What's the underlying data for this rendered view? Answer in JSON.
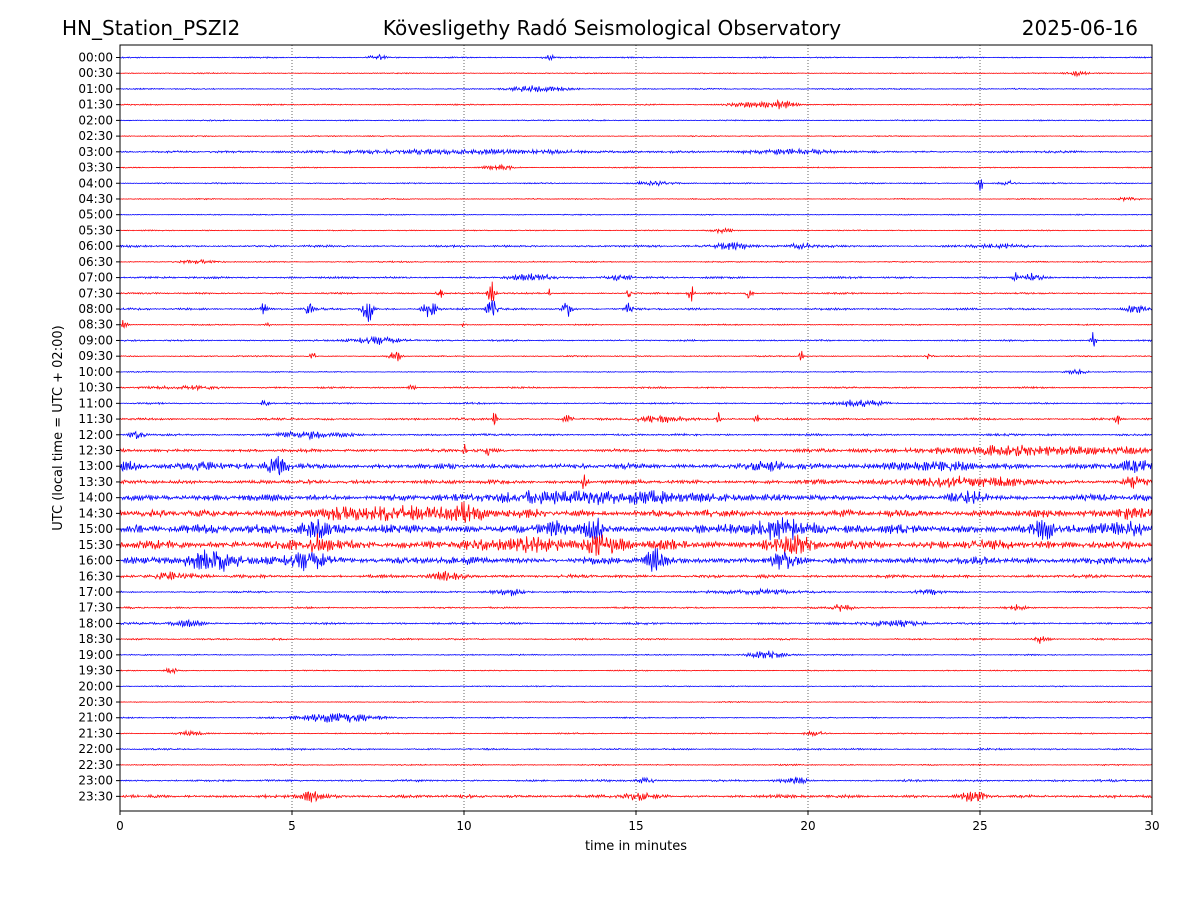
{
  "header": {
    "station": "HN_Station_PSZI2",
    "observatory": "Kövesligethy Radó Seismological Observatory",
    "date": "2025-06-16"
  },
  "chart_data": {
    "type": "line",
    "title": "Kövesligethy Radó Seismological Observatory",
    "xlabel": "time in minutes",
    "ylabel": "UTC (local time = UTC + 02:00)",
    "xlim": [
      0,
      30
    ],
    "x_ticks": [
      0,
      5,
      10,
      15,
      20,
      25,
      30
    ],
    "x_tick_labels": [
      "0",
      "5",
      "10",
      "15",
      "20",
      "25",
      "30"
    ],
    "grid": "vertical dotted at x ticks",
    "colors": {
      "even_row": "#0000ff",
      "odd_row": "#ff0000",
      "grid": "#000000"
    },
    "rows": [
      {
        "label": "00:00",
        "level": 0.6,
        "events": [
          [
            7.5,
            0.25,
            2.5
          ],
          [
            12.5,
            0.2,
            2
          ]
        ]
      },
      {
        "label": "00:30",
        "level": 0.5,
        "events": [
          [
            27.8,
            0.3,
            2
          ]
        ]
      },
      {
        "label": "01:00",
        "level": 0.6,
        "events": [
          [
            12.2,
            0.8,
            2.5
          ]
        ]
      },
      {
        "label": "01:30",
        "level": 0.6,
        "events": [
          [
            18.2,
            0.6,
            2
          ],
          [
            19.2,
            0.4,
            3
          ]
        ]
      },
      {
        "label": "02:00",
        "level": 0.6,
        "events": []
      },
      {
        "label": "02:30",
        "level": 0.5,
        "events": []
      },
      {
        "label": "03:00",
        "level": 1.0,
        "events": [
          [
            10.0,
            4.0,
            1.5
          ],
          [
            19.5,
            1.2,
            2
          ]
        ]
      },
      {
        "label": "03:30",
        "level": 0.5,
        "events": [
          [
            11.0,
            0.4,
            2.5
          ]
        ]
      },
      {
        "label": "04:00",
        "level": 0.6,
        "events": [
          [
            15.5,
            0.5,
            2
          ],
          [
            25.0,
            0.08,
            8
          ],
          [
            25.8,
            0.25,
            2
          ]
        ]
      },
      {
        "label": "04:30",
        "level": 0.5,
        "events": [
          [
            29.3,
            0.3,
            2
          ]
        ]
      },
      {
        "label": "05:00",
        "level": 0.5,
        "events": []
      },
      {
        "label": "05:30",
        "level": 0.5,
        "events": [
          [
            17.5,
            0.3,
            2
          ]
        ]
      },
      {
        "label": "06:00",
        "level": 1.0,
        "events": [
          [
            17.8,
            0.5,
            3
          ],
          [
            19.8,
            0.3,
            2.5
          ],
          [
            25.5,
            0.6,
            1.5
          ]
        ]
      },
      {
        "label": "06:30",
        "level": 0.6,
        "events": [
          [
            2.2,
            0.5,
            1.5
          ]
        ]
      },
      {
        "label": "07:00",
        "level": 1.0,
        "events": [
          [
            12.0,
            0.6,
            3
          ],
          [
            14.5,
            0.4,
            2.5
          ],
          [
            26.0,
            0.06,
            6
          ],
          [
            26.5,
            0.3,
            3
          ]
        ]
      },
      {
        "label": "07:30",
        "level": 0.8,
        "events": [
          [
            9.3,
            0.08,
            6
          ],
          [
            10.8,
            0.1,
            10
          ],
          [
            14.8,
            0.06,
            7
          ],
          [
            16.6,
            0.08,
            8
          ],
          [
            18.3,
            0.08,
            6
          ],
          [
            12.5,
            0.05,
            4
          ]
        ]
      },
      {
        "label": "08:00",
        "level": 1.0,
        "events": [
          [
            4.2,
            0.08,
            7
          ],
          [
            5.5,
            0.1,
            6
          ],
          [
            7.2,
            0.15,
            12
          ],
          [
            9.0,
            0.2,
            7
          ],
          [
            10.8,
            0.15,
            8
          ],
          [
            13.0,
            0.15,
            7
          ],
          [
            14.8,
            0.1,
            6
          ],
          [
            29.5,
            0.3,
            3
          ]
        ]
      },
      {
        "label": "08:30",
        "level": 0.6,
        "events": [
          [
            0.1,
            0.1,
            6
          ],
          [
            4.3,
            0.06,
            4
          ],
          [
            10.0,
            0.05,
            4
          ]
        ]
      },
      {
        "label": "09:00",
        "level": 0.8,
        "events": [
          [
            7.5,
            0.8,
            3
          ],
          [
            28.3,
            0.08,
            7
          ]
        ]
      },
      {
        "label": "09:30",
        "level": 0.6,
        "events": [
          [
            5.6,
            0.08,
            4
          ],
          [
            8.0,
            0.15,
            5
          ],
          [
            19.8,
            0.05,
            7
          ],
          [
            23.5,
            0.1,
            3
          ]
        ]
      },
      {
        "label": "10:00",
        "level": 0.5,
        "events": [
          [
            27.8,
            0.3,
            2
          ]
        ]
      },
      {
        "label": "10:30",
        "level": 0.8,
        "events": [
          [
            2.0,
            0.8,
            1.5
          ],
          [
            8.5,
            0.1,
            3
          ]
        ]
      },
      {
        "label": "11:00",
        "level": 0.8,
        "events": [
          [
            4.2,
            0.1,
            5
          ],
          [
            21.5,
            0.8,
            2.5
          ]
        ]
      },
      {
        "label": "11:30",
        "level": 1.0,
        "events": [
          [
            10.9,
            0.06,
            7
          ],
          [
            13.0,
            0.15,
            3
          ],
          [
            15.8,
            0.8,
            2.5
          ],
          [
            17.4,
            0.06,
            7
          ],
          [
            18.5,
            0.06,
            6
          ],
          [
            29.0,
            0.06,
            6
          ]
        ]
      },
      {
        "label": "12:00",
        "level": 1.0,
        "events": [
          [
            0.5,
            0.2,
            4
          ],
          [
            5.5,
            1.0,
            2.5
          ]
        ]
      },
      {
        "label": "12:30",
        "level": 1.5,
        "events": [
          [
            10.0,
            0.06,
            5
          ],
          [
            10.7,
            0.06,
            5
          ],
          [
            26.5,
            3.5,
            3.5
          ]
        ]
      },
      {
        "label": "13:00",
        "level": 2.5,
        "events": [
          [
            0.2,
            0.3,
            3
          ],
          [
            2.3,
            0.8,
            3
          ],
          [
            4.6,
            0.3,
            7
          ],
          [
            19.0,
            1.0,
            2.5
          ],
          [
            23.5,
            1.5,
            2.5
          ],
          [
            29.5,
            0.6,
            3
          ]
        ]
      },
      {
        "label": "13:30",
        "level": 2.0,
        "events": [
          [
            13.5,
            0.1,
            6
          ],
          [
            24.5,
            2.0,
            3.5
          ],
          [
            29.5,
            0.3,
            4
          ]
        ]
      },
      {
        "label": "14:00",
        "level": 3.0,
        "events": [
          [
            12.0,
            1.5,
            3.5
          ],
          [
            15.0,
            2.5,
            4
          ],
          [
            24.7,
            0.5,
            4
          ]
        ]
      },
      {
        "label": "14:30",
        "level": 3.5,
        "events": [
          [
            8.0,
            2.5,
            4
          ],
          [
            10.0,
            0.5,
            5
          ],
          [
            29.5,
            0.6,
            4
          ]
        ]
      },
      {
        "label": "15:00",
        "level": 4.5,
        "events": [
          [
            0.5,
            0.1,
            7
          ],
          [
            5.7,
            0.5,
            6
          ],
          [
            12.7,
            0.3,
            6
          ],
          [
            13.8,
            0.3,
            6
          ],
          [
            19.3,
            1.0,
            7
          ],
          [
            26.9,
            0.3,
            7
          ],
          [
            29.2,
            0.5,
            5
          ]
        ]
      },
      {
        "label": "15:30",
        "level": 4.5,
        "events": [
          [
            5.8,
            0.3,
            7
          ],
          [
            14.0,
            0.5,
            7
          ],
          [
            19.4,
            0.6,
            7
          ],
          [
            12.0,
            1.0,
            5
          ]
        ]
      },
      {
        "label": "16:00",
        "level": 3.5,
        "events": [
          [
            2.7,
            0.8,
            8
          ],
          [
            5.5,
            0.6,
            7
          ],
          [
            15.6,
            0.3,
            7
          ],
          [
            19.3,
            0.4,
            5
          ]
        ]
      },
      {
        "label": "16:30",
        "level": 1.5,
        "events": [
          [
            1.5,
            0.6,
            3
          ],
          [
            9.5,
            0.5,
            3
          ]
        ]
      },
      {
        "label": "17:00",
        "level": 0.8,
        "events": [
          [
            11.3,
            0.5,
            3
          ],
          [
            18.5,
            1.5,
            1.5
          ],
          [
            23.5,
            0.4,
            2
          ]
        ]
      },
      {
        "label": "17:30",
        "level": 0.8,
        "events": [
          [
            21.0,
            0.3,
            3
          ],
          [
            26.0,
            0.3,
            2
          ]
        ]
      },
      {
        "label": "18:00",
        "level": 1.0,
        "events": [
          [
            2.0,
            0.5,
            2.5
          ],
          [
            22.5,
            0.8,
            2.5
          ]
        ]
      },
      {
        "label": "18:30",
        "level": 0.8,
        "events": [
          [
            26.8,
            0.2,
            4
          ]
        ]
      },
      {
        "label": "19:00",
        "level": 0.6,
        "events": [
          [
            18.8,
            0.6,
            3.5
          ]
        ]
      },
      {
        "label": "19:30",
        "level": 0.5,
        "events": [
          [
            1.5,
            0.15,
            3
          ]
        ]
      },
      {
        "label": "20:00",
        "level": 0.5,
        "events": []
      },
      {
        "label": "20:30",
        "level": 0.5,
        "events": []
      },
      {
        "label": "21:00",
        "level": 0.6,
        "events": [
          [
            6.3,
            1.2,
            4
          ]
        ]
      },
      {
        "label": "21:30",
        "level": 0.6,
        "events": [
          [
            2.0,
            0.4,
            1.5
          ],
          [
            20.2,
            0.3,
            2
          ]
        ]
      },
      {
        "label": "22:00",
        "level": 0.8,
        "events": []
      },
      {
        "label": "22:30",
        "level": 0.6,
        "events": []
      },
      {
        "label": "23:00",
        "level": 1.0,
        "events": [
          [
            19.6,
            0.3,
            3.5
          ],
          [
            15.3,
            0.3,
            2
          ]
        ]
      },
      {
        "label": "23:30",
        "level": 1.5,
        "events": [
          [
            5.6,
            0.3,
            5
          ],
          [
            15.0,
            0.5,
            2.5
          ],
          [
            24.8,
            0.3,
            4
          ]
        ]
      }
    ]
  }
}
